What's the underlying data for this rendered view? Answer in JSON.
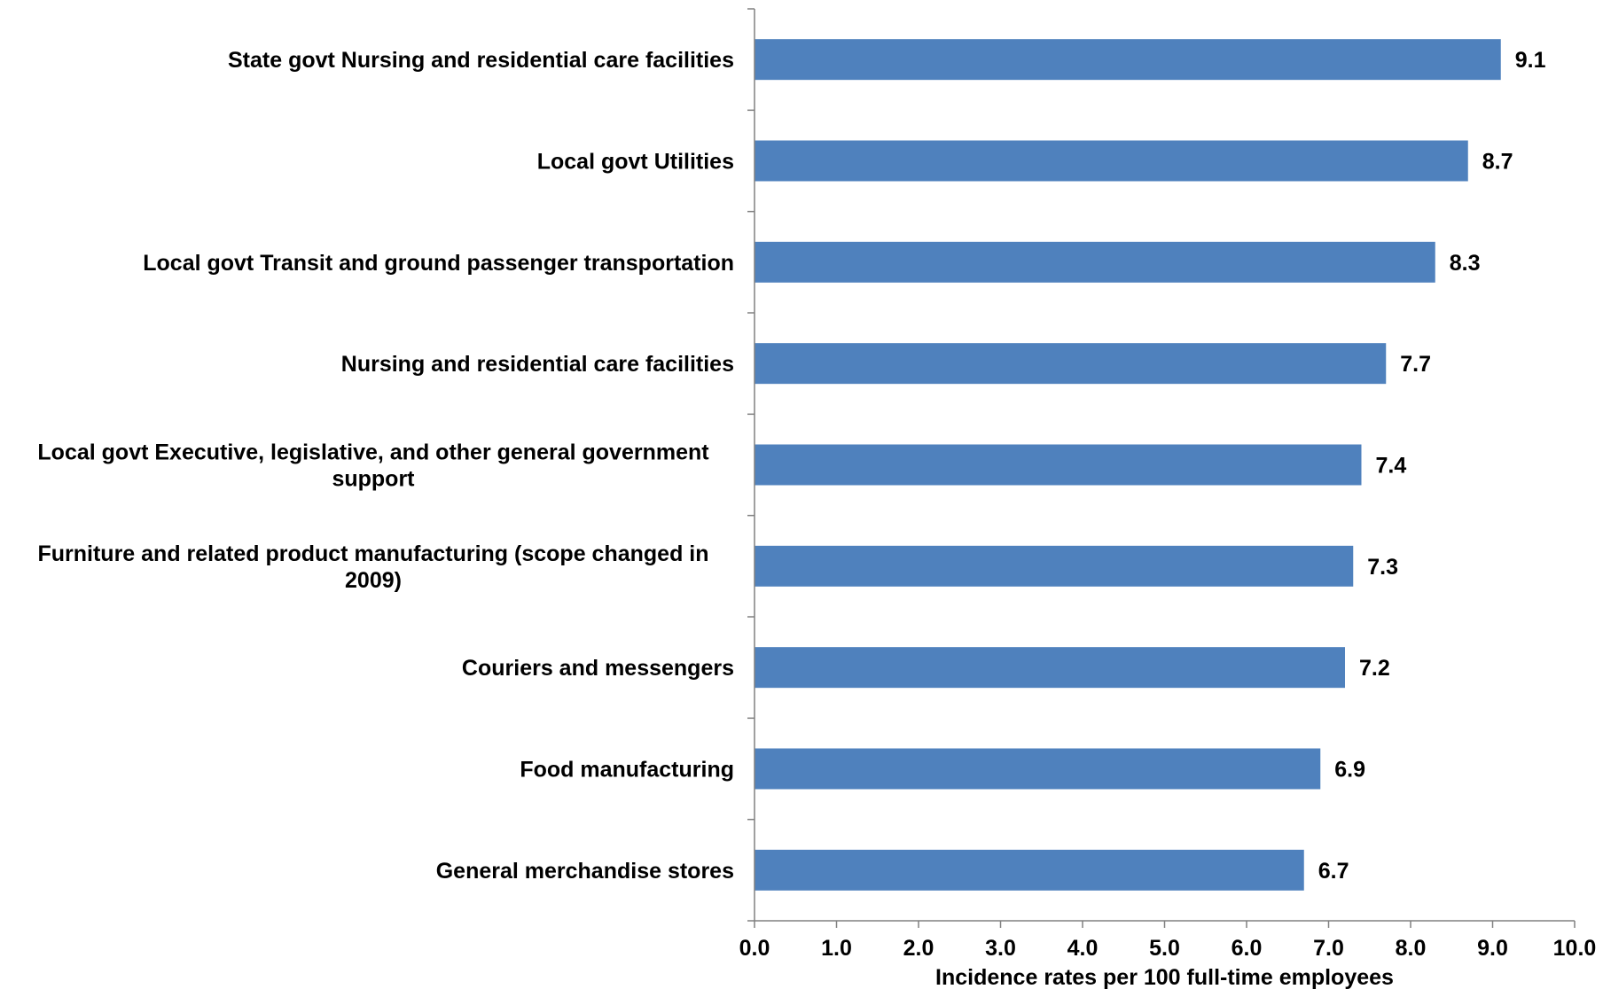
{
  "chart_data": {
    "type": "bar",
    "orientation": "horizontal",
    "title": "",
    "xlabel": "Incidence rates per 100 full-time employees",
    "ylabel": "",
    "xlim": [
      0,
      10
    ],
    "x_ticks": [
      "0.0",
      "1.0",
      "2.0",
      "3.0",
      "4.0",
      "5.0",
      "6.0",
      "7.0",
      "8.0",
      "9.0",
      "10.0"
    ],
    "grid": false,
    "legend": "none",
    "bar_color": "#4F81BD",
    "categories": [
      [
        "State govt Nursing and residential care facilities"
      ],
      [
        "Local govt Utilities"
      ],
      [
        "Local govt Transit and ground passenger transportation"
      ],
      [
        "Nursing and residential care facilities"
      ],
      [
        "Local govt Executive, legislative, and other general government",
        "support"
      ],
      [
        "Furniture and related product manufacturing (scope changed in",
        "2009)"
      ],
      [
        "Couriers and messengers"
      ],
      [
        "Food manufacturing"
      ],
      [
        "General merchandise stores"
      ]
    ],
    "values": [
      9.1,
      8.7,
      8.3,
      7.7,
      7.4,
      7.3,
      7.2,
      6.9,
      6.7
    ],
    "data_labels": [
      "9.1",
      "8.7",
      "8.3",
      "7.7",
      "7.4",
      "7.3",
      "7.2",
      "6.9",
      "6.7"
    ]
  }
}
